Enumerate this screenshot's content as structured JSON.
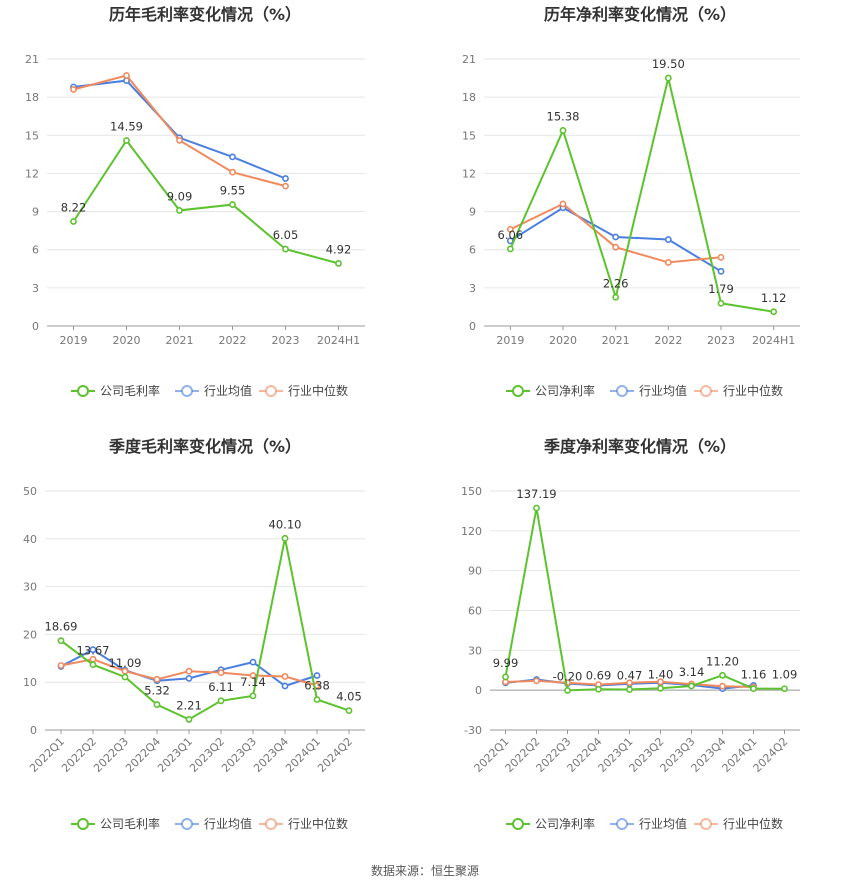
{
  "source_label": "数据来源：恒生聚源",
  "colors": {
    "company": "#5cc22e",
    "industry_avg": "#4a7fe0",
    "industry_median": "#f08a5d",
    "grid": "#e6e6e6",
    "axis": "#999999",
    "tick_text": "#777777",
    "title_text": "#333333"
  },
  "chart_data": [
    {
      "type": "line",
      "title": "历年毛利率变化情况（%）",
      "categories": [
        "2019",
        "2020",
        "2021",
        "2022",
        "2023",
        "2024H1"
      ],
      "ylim": [
        0,
        21
      ],
      "yticks": [
        0,
        3,
        6,
        9,
        12,
        15,
        18,
        21
      ],
      "grid": true,
      "legend_position": "bottom",
      "series": [
        {
          "name": "公司毛利率",
          "color": "#5cc22e",
          "values": [
            8.22,
            14.59,
            9.09,
            9.55,
            6.05,
            4.92
          ],
          "labels": [
            "8.22",
            "14.59",
            "9.09",
            "9.55",
            "6.05",
            "4.92"
          ]
        },
        {
          "name": "行业均值",
          "color": "#4a7fe0",
          "values": [
            18.8,
            19.3,
            14.8,
            13.3,
            11.6,
            null
          ]
        },
        {
          "name": "行业中位数",
          "color": "#f08a5d",
          "values": [
            18.6,
            19.7,
            14.6,
            12.1,
            11.0,
            null
          ]
        }
      ]
    },
    {
      "type": "line",
      "title": "历年净利率变化情况（%）",
      "categories": [
        "2019",
        "2020",
        "2021",
        "2022",
        "2023",
        "2024H1"
      ],
      "ylim": [
        0,
        21
      ],
      "yticks": [
        0,
        3,
        6,
        9,
        12,
        15,
        18,
        21
      ],
      "grid": true,
      "legend_position": "bottom",
      "series": [
        {
          "name": "公司净利率",
          "color": "#5cc22e",
          "values": [
            6.06,
            15.38,
            2.26,
            19.5,
            1.79,
            1.12
          ],
          "labels": [
            "6.06",
            "15.38",
            "2.26",
            "19.50",
            "1.79",
            "1.12"
          ]
        },
        {
          "name": "行业均值",
          "color": "#4a7fe0",
          "values": [
            6.7,
            9.3,
            7.0,
            6.8,
            4.3,
            null
          ]
        },
        {
          "name": "行业中位数",
          "color": "#f08a5d",
          "values": [
            7.6,
            9.6,
            6.2,
            5.0,
            5.4,
            null
          ]
        }
      ]
    },
    {
      "type": "line",
      "title": "季度毛利率变化情况（%）",
      "categories": [
        "2022Q1",
        "2022Q2",
        "2022Q3",
        "2022Q4",
        "2023Q1",
        "2023Q2",
        "2023Q3",
        "2023Q4",
        "2024Q1",
        "2024Q2"
      ],
      "ylim": [
        0,
        50
      ],
      "yticks": [
        0,
        10,
        20,
        30,
        40,
        50
      ],
      "grid": true,
      "rotate_xlabels": true,
      "legend_position": "bottom",
      "series": [
        {
          "name": "公司毛利率",
          "color": "#5cc22e",
          "values": [
            18.69,
            13.67,
            11.09,
            5.32,
            2.21,
            6.11,
            7.14,
            40.1,
            6.38,
            4.05
          ],
          "labels": [
            "18.69",
            "13.67",
            "11.09",
            "5.32",
            "2.21",
            "6.11",
            "7.14",
            "40.10",
            "6.38",
            "4.05"
          ]
        },
        {
          "name": "行业均值",
          "color": "#4a7fe0",
          "values": [
            13.3,
            16.8,
            12.5,
            10.3,
            10.8,
            12.6,
            14.2,
            9.2,
            11.4,
            null
          ]
        },
        {
          "name": "行业中位数",
          "color": "#f08a5d",
          "values": [
            13.5,
            14.8,
            12.3,
            10.6,
            12.3,
            12.0,
            11.4,
            11.2,
            9.3,
            null
          ]
        }
      ]
    },
    {
      "type": "line",
      "title": "季度净利率变化情况（%）",
      "categories": [
        "2022Q1",
        "2022Q2",
        "2022Q3",
        "2022Q4",
        "2023Q1",
        "2023Q2",
        "2023Q3",
        "2023Q4",
        "2024Q1",
        "2024Q2"
      ],
      "ylim": [
        -30,
        150
      ],
      "yticks": [
        -30,
        0,
        30,
        60,
        90,
        120,
        150
      ],
      "grid": true,
      "rotate_xlabels": true,
      "legend_position": "bottom",
      "series": [
        {
          "name": "公司净利率",
          "color": "#5cc22e",
          "values": [
            9.99,
            137.19,
            -0.2,
            0.69,
            0.47,
            1.4,
            3.14,
            11.2,
            1.16,
            1.09
          ],
          "labels": [
            "9.99",
            "137.19",
            "-0.20",
            "0.69",
            "0.47",
            "1.40",
            "3.14",
            "11.20",
            "1.16",
            "1.09"
          ]
        },
        {
          "name": "行业均值",
          "color": "#4a7fe0",
          "values": [
            5.5,
            8.0,
            5.0,
            3.5,
            4.8,
            5.6,
            3.9,
            1.2,
            3.6,
            null
          ]
        },
        {
          "name": "行业中位数",
          "color": "#f08a5d",
          "values": [
            6.2,
            7.0,
            5.6,
            4.2,
            5.6,
            6.3,
            4.6,
            3.0,
            2.4,
            null
          ]
        }
      ]
    }
  ]
}
